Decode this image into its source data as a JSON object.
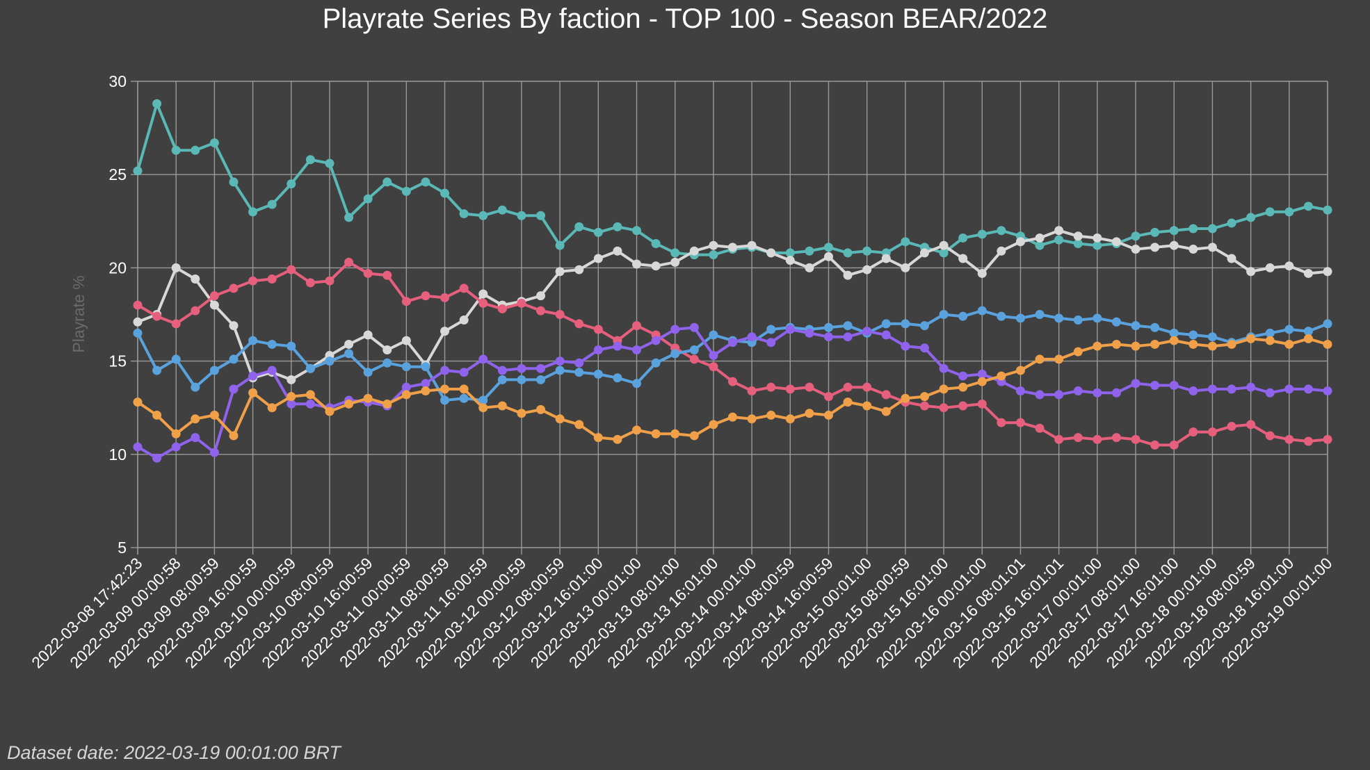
{
  "chart_data": {
    "type": "line",
    "title": "Playrate Series By faction - TOP 100 - Season BEAR/2022",
    "ylabel": "Playrate %",
    "xlabel": "",
    "ylim": [
      5,
      30
    ],
    "y_ticks": [
      5,
      10,
      15,
      20,
      25,
      30
    ],
    "grid": true,
    "x_tick_labels": [
      "2022-03-08 17:42:23",
      "2022-03-09 00:00:58",
      "2022-03-09 08:00:59",
      "2022-03-09 16:00:59",
      "2022-03-10 00:00:59",
      "2022-03-10 08:00:59",
      "2022-03-10 16:00:59",
      "2022-03-11 00:00:59",
      "2022-03-11 08:00:59",
      "2022-03-11 16:00:59",
      "2022-03-12 00:00:59",
      "2022-03-12 08:00:59",
      "2022-03-12 16:01:00",
      "2022-03-13 00:01:00",
      "2022-03-13 08:01:00",
      "2022-03-13 16:01:00",
      "2022-03-14 00:01:00",
      "2022-03-14 08:00:59",
      "2022-03-14 16:00:59",
      "2022-03-15 00:01:00",
      "2022-03-15 08:00:59",
      "2022-03-15 16:01:00",
      "2022-03-16 00:01:00",
      "2022-03-16 08:01:01",
      "2022-03-16 16:01:01",
      "2022-03-17 00:01:00",
      "2022-03-17 08:01:00",
      "2022-03-17 16:01:00",
      "2022-03-18 00:01:00",
      "2022-03-18 08:00:59",
      "2022-03-18 16:01:00",
      "2022-03-19 00:01:00"
    ],
    "series": [
      {
        "color": "#5ab8b6",
        "values": [
          25.2,
          28.8,
          26.3,
          26.3,
          26.7,
          24.6,
          23.0,
          23.4,
          24.5,
          25.8,
          25.6,
          22.7,
          23.7,
          24.6,
          24.1,
          24.6,
          24.0,
          22.9,
          22.8,
          23.1,
          22.8,
          22.8,
          21.2,
          22.2,
          21.9,
          22.2,
          22.0,
          21.3,
          20.8,
          20.7,
          20.7,
          21.0,
          21.1,
          20.8,
          20.8,
          20.9,
          21.1,
          20.8,
          20.9,
          20.8,
          21.4,
          21.1,
          20.8,
          21.6,
          21.8,
          22.0,
          21.7,
          21.2,
          21.5,
          21.3,
          21.2,
          21.3,
          21.7,
          21.9,
          22.0,
          22.1,
          22.1,
          22.4,
          22.7,
          23.0,
          23.0,
          23.3,
          23.1
        ]
      },
      {
        "color": "#d8d8d8",
        "values": [
          17.1,
          17.5,
          20.0,
          19.4,
          18.0,
          16.9,
          14.1,
          14.4,
          14.0,
          14.6,
          15.3,
          15.9,
          16.4,
          15.6,
          16.1,
          14.8,
          16.6,
          17.2,
          18.6,
          18.0,
          18.2,
          18.5,
          19.8,
          19.9,
          20.5,
          20.9,
          20.2,
          20.1,
          20.3,
          20.9,
          21.2,
          21.1,
          21.2,
          20.8,
          20.4,
          20.0,
          20.6,
          19.6,
          19.9,
          20.5,
          20.0,
          20.8,
          21.2,
          20.5,
          19.7,
          20.9,
          21.4,
          21.6,
          22.0,
          21.7,
          21.6,
          21.4,
          21.0,
          21.1,
          21.2,
          21.0,
          21.1,
          20.5,
          19.8,
          20.0,
          20.1,
          19.7,
          19.8
        ]
      },
      {
        "color": "#e65f7d",
        "values": [
          18.0,
          17.4,
          17.0,
          17.7,
          18.5,
          18.9,
          19.3,
          19.4,
          19.9,
          19.2,
          19.3,
          20.3,
          19.7,
          19.6,
          18.2,
          18.5,
          18.4,
          18.9,
          18.1,
          17.8,
          18.1,
          17.7,
          17.5,
          17.0,
          16.7,
          16.1,
          16.9,
          16.4,
          15.7,
          15.1,
          14.7,
          13.9,
          13.4,
          13.6,
          13.5,
          13.6,
          13.1,
          13.6,
          13.6,
          13.2,
          12.8,
          12.6,
          12.5,
          12.6,
          12.7,
          11.7,
          11.7,
          11.4,
          10.8,
          10.9,
          10.8,
          10.9,
          10.8,
          10.5,
          10.5,
          11.2,
          11.2,
          11.5,
          11.6,
          11.0,
          10.8,
          10.7,
          10.8
        ]
      },
      {
        "color": "#5aa2de",
        "values": [
          16.5,
          14.5,
          15.1,
          13.6,
          14.5,
          15.1,
          16.1,
          15.9,
          15.8,
          14.6,
          15.0,
          15.4,
          14.4,
          14.9,
          14.7,
          14.7,
          12.9,
          13.0,
          12.9,
          14.0,
          14.0,
          14.0,
          14.5,
          14.4,
          14.3,
          14.1,
          13.8,
          14.9,
          15.4,
          15.6,
          16.4,
          16.1,
          16.0,
          16.7,
          16.8,
          16.7,
          16.8,
          16.9,
          16.5,
          17.0,
          17.0,
          16.9,
          17.5,
          17.4,
          17.7,
          17.4,
          17.3,
          17.5,
          17.3,
          17.2,
          17.3,
          17.1,
          16.9,
          16.8,
          16.5,
          16.4,
          16.3,
          16.0,
          16.3,
          16.5,
          16.7,
          16.6,
          17.0
        ]
      },
      {
        "color": "#8f63eb",
        "values": [
          10.4,
          9.8,
          10.4,
          10.9,
          10.1,
          13.5,
          14.2,
          14.5,
          12.7,
          12.7,
          12.5,
          12.9,
          12.8,
          12.6,
          13.6,
          13.8,
          14.5,
          14.4,
          15.1,
          14.5,
          14.6,
          14.6,
          15.0,
          14.9,
          15.6,
          15.8,
          15.6,
          16.1,
          16.7,
          16.8,
          15.3,
          16.0,
          16.3,
          16.0,
          16.7,
          16.5,
          16.3,
          16.3,
          16.6,
          16.4,
          15.8,
          15.7,
          14.6,
          14.2,
          14.3,
          13.9,
          13.4,
          13.2,
          13.2,
          13.4,
          13.3,
          13.3,
          13.8,
          13.7,
          13.7,
          13.4,
          13.5,
          13.5,
          13.6,
          13.3,
          13.5,
          13.5,
          13.4
        ]
      },
      {
        "color": "#f0a049",
        "values": [
          12.8,
          12.1,
          11.1,
          11.9,
          12.1,
          11.0,
          13.3,
          12.5,
          13.1,
          13.2,
          12.3,
          12.7,
          13.0,
          12.7,
          13.2,
          13.4,
          13.5,
          13.5,
          12.5,
          12.6,
          12.2,
          12.4,
          11.9,
          11.6,
          10.9,
          10.8,
          11.3,
          11.1,
          11.1,
          11.0,
          11.6,
          12.0,
          11.9,
          12.1,
          11.9,
          12.2,
          12.1,
          12.8,
          12.6,
          12.3,
          13.0,
          13.1,
          13.5,
          13.6,
          13.9,
          14.2,
          14.5,
          15.1,
          15.1,
          15.5,
          15.8,
          15.9,
          15.8,
          15.9,
          16.1,
          15.9,
          15.8,
          15.9,
          16.2,
          16.1,
          15.9,
          16.2,
          15.9
        ]
      }
    ]
  },
  "footer": "Dataset date: 2022-03-19 00:01:00 BRT"
}
